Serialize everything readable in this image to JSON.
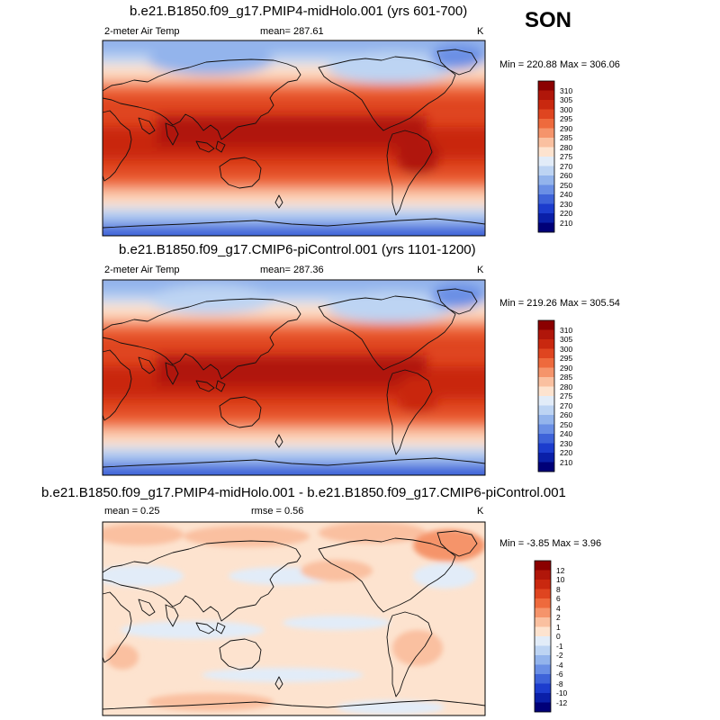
{
  "season": "SON",
  "units": "K",
  "panels": [
    {
      "title": "b.e21.B1850.f09_g17.PMIP4-midHolo.001 (yrs 601-700)",
      "left_label": "2-meter Air Temp",
      "center_label": "mean= 287.61",
      "right_label": "K",
      "minmax": "Min = 220.88 Max = 306.06"
    },
    {
      "title": "b.e21.B1850.f09_g17.CMIP6-piControl.001 (yrs 1101-1200)",
      "left_label": "2-meter Air Temp",
      "center_label": "mean= 287.36",
      "right_label": "K",
      "minmax": "Min = 219.26 Max = 305.54"
    },
    {
      "title": "b.e21.B1850.f09_g17.PMIP4-midHolo.001 - b.e21.B1850.f09_g17.CMIP6-piControl.001",
      "left_label": "mean =   0.25",
      "center_label": "rmse =   0.56",
      "right_label": "K",
      "minmax": "Min =  -3.85 Max =   3.96"
    }
  ],
  "colorbars": {
    "temperature": {
      "levels": [
        "310",
        "305",
        "300",
        "295",
        "290",
        "285",
        "280",
        "275",
        "270",
        "260",
        "250",
        "240",
        "230",
        "220",
        "210"
      ],
      "colors": [
        "#8b0000",
        "#b0160a",
        "#c9280f",
        "#df4520",
        "#ee6a3d",
        "#f5946b",
        "#fac0a0",
        "#fde3cf",
        "#e2ecf8",
        "#bdd4f3",
        "#93b4ec",
        "#6a8fe5",
        "#3e63d9",
        "#1c3ccd",
        "#0a1fa8",
        "#000078"
      ]
    },
    "difference": {
      "levels": [
        "12",
        "10",
        "8",
        "6",
        "4",
        "2",
        "1",
        "0",
        "-1",
        "-2",
        "-4",
        "-6",
        "-8",
        "-10",
        "-12"
      ],
      "colors": [
        "#8b0000",
        "#b0160a",
        "#c9280f",
        "#df4520",
        "#ee6a3d",
        "#f5946b",
        "#fac0a0",
        "#fde3cf",
        "#e2ecf8",
        "#bdd4f3",
        "#93b4ec",
        "#6a8fe5",
        "#3e63d9",
        "#1c3ccd",
        "#0a1fa8",
        "#000078"
      ]
    }
  },
  "chart_data": [
    {
      "type": "heatmap",
      "title": "b.e21.B1850.f09_g17.PMIP4-midHolo.001 (yrs 601-700)",
      "variable": "2-meter Air Temp",
      "units": "K",
      "mean": 287.61,
      "min": 220.88,
      "max": 306.06,
      "contour_levels": [
        210,
        220,
        230,
        240,
        250,
        260,
        270,
        275,
        280,
        285,
        290,
        295,
        300,
        305,
        310
      ]
    },
    {
      "type": "heatmap",
      "title": "b.e21.B1850.f09_g17.CMIP6-piControl.001 (yrs 1101-1200)",
      "variable": "2-meter Air Temp",
      "units": "K",
      "mean": 287.36,
      "min": 219.26,
      "max": 305.54,
      "contour_levels": [
        210,
        220,
        230,
        240,
        250,
        260,
        270,
        275,
        280,
        285,
        290,
        295,
        300,
        305,
        310
      ]
    },
    {
      "type": "heatmap",
      "title": "b.e21.B1850.f09_g17.PMIP4-midHolo.001 - b.e21.B1850.f09_g17.CMIP6-piControl.001",
      "units": "K",
      "mean": 0.25,
      "rmse": 0.56,
      "min": -3.85,
      "max": 3.96,
      "contour_levels": [
        -12,
        -10,
        -8,
        -6,
        -4,
        -2,
        -1,
        0,
        1,
        2,
        4,
        6,
        8,
        10,
        12
      ]
    }
  ]
}
